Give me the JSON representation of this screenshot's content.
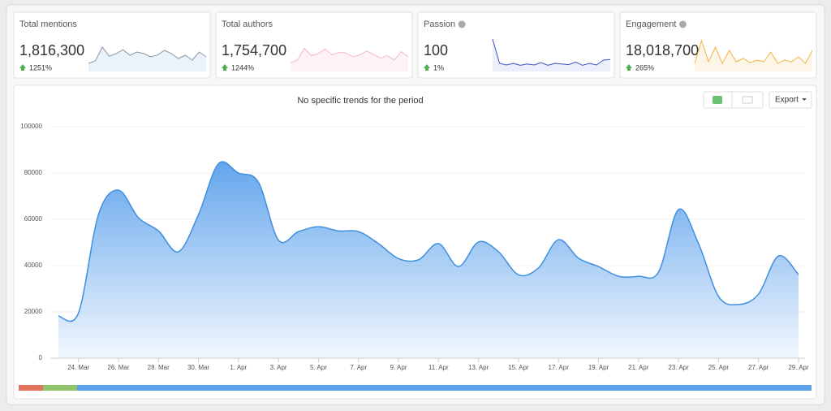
{
  "cards": [
    {
      "title": "Total mentions",
      "value": "1,816,300",
      "change": "1251%",
      "color": "#8a96a3",
      "fill": "#eaf3fb",
      "spark": [
        20,
        28,
        70,
        42,
        50,
        62,
        45,
        55,
        50,
        40,
        46,
        60,
        50,
        35,
        45,
        30,
        55,
        40
      ]
    },
    {
      "title": "Total authors",
      "value": "1,754,700",
      "change": "1244%",
      "color": "#f2b8c4",
      "fill": "#fdf3f5",
      "spark": [
        22,
        30,
        66,
        44,
        50,
        64,
        46,
        54,
        52,
        40,
        46,
        58,
        48,
        36,
        44,
        30,
        56,
        40
      ]
    },
    {
      "title": "Passion",
      "value": "100",
      "change": "1%",
      "color": "#3b4fc4",
      "fill": "#eceff9",
      "spark": [
        95,
        20,
        15,
        20,
        14,
        18,
        15,
        22,
        14,
        20,
        18,
        16,
        24,
        14,
        20,
        15,
        30,
        32
      ]
    },
    {
      "title": "Engagement",
      "value": "18,018,700",
      "change": "265%",
      "color": "#f0b440",
      "fill": "#fdf6e8",
      "spark": [
        20,
        90,
        25,
        70,
        20,
        60,
        25,
        35,
        22,
        30,
        25,
        55,
        20,
        30,
        25,
        40,
        20,
        60
      ]
    }
  ],
  "chart_data": {
    "type": "area",
    "title": "No specific trends for the period",
    "export": "Export",
    "color": "#5ca1ec",
    "categories": [
      null,
      "24. Mar",
      null,
      "26. Mar",
      null,
      "28. Mar",
      null,
      "30. Mar",
      null,
      "1. Apr",
      null,
      "3. Apr",
      null,
      "5. Apr",
      null,
      "7. Apr",
      null,
      "9. Apr",
      null,
      "11. Apr",
      null,
      "13. Apr",
      null,
      "15. Apr",
      null,
      "17. Apr",
      null,
      "19. Apr",
      null,
      "21. Apr",
      null,
      "23. Apr",
      null,
      "25. Apr",
      null,
      "27. Apr",
      null,
      "29. Apr"
    ],
    "values": [
      18200,
      19500,
      62000,
      72600,
      60700,
      55000,
      46000,
      62000,
      84000,
      80000,
      76000,
      51000,
      54700,
      56800,
      55000,
      54700,
      49500,
      43000,
      42500,
      49500,
      39600,
      50200,
      46000,
      36000,
      39000,
      51200,
      43200,
      39600,
      35400,
      35400,
      37200,
      64200,
      49500,
      26700,
      23200,
      27700,
      44200,
      36100
    ],
    "ylim": [
      0,
      100000
    ],
    "yticks": [
      0,
      20000,
      40000,
      60000,
      80000,
      100000
    ],
    "grid": true
  }
}
